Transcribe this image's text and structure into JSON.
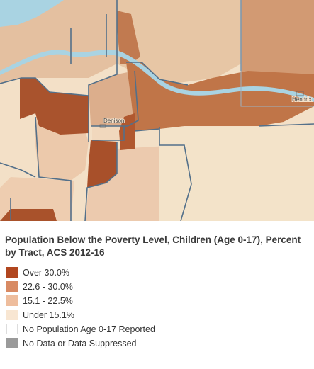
{
  "map": {
    "place_labels": {
      "denison": "Denison",
      "hendrix": "Hendrix"
    }
  },
  "legend": {
    "title": "Population Below the Poverty Level, Children (Age 0-17), Percent by Tract, ACS 2012-16",
    "items": [
      {
        "label": "Over 30.0%",
        "color": "#b1461f"
      },
      {
        "label": "22.6 - 30.0%",
        "color": "#d88a63"
      },
      {
        "label": "15.1 - 22.5%",
        "color": "#eebd9d"
      },
      {
        "label": "Under 15.1%",
        "color": "#f8e6d2"
      },
      {
        "label": "No Population Age 0-17 Reported",
        "color": "#ffffff"
      },
      {
        "label": "No Data or Data Suppressed",
        "color": "#9a9a9a"
      }
    ]
  },
  "colors": {
    "water": "#a9d3e2",
    "tract_outline": "#53708a",
    "class_over_30": "#b1461f",
    "class_22_30": "#c57a4e",
    "class_15_22": "#e0b894",
    "class_under_15": "#f3dfc4"
  }
}
